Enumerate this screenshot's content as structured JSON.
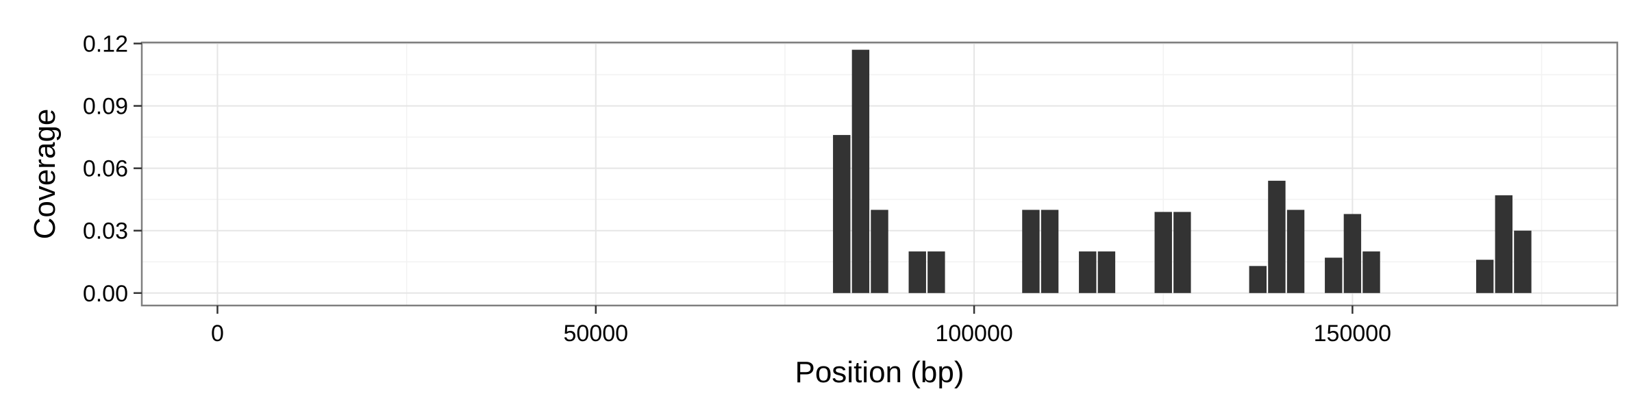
{
  "chart_data": {
    "type": "bar",
    "title": "",
    "xlabel": "Position (bp)",
    "ylabel": "Coverage",
    "xlim": [
      -10000,
      185000
    ],
    "ylim": [
      -0.006,
      0.1205
    ],
    "x_ticks": [
      0,
      50000,
      100000,
      150000
    ],
    "x_tick_labels": [
      "0",
      "50000",
      "100000",
      "150000"
    ],
    "y_ticks": [
      0.0,
      0.03,
      0.06,
      0.09,
      0.12
    ],
    "y_tick_labels": [
      "0.00",
      "0.03",
      "0.06",
      "0.09",
      "0.12"
    ],
    "grid": true,
    "bar_width": 2300,
    "bar_color": "#333333",
    "x": [
      82500,
      85000,
      87500,
      92500,
      95000,
      107500,
      110000,
      115000,
      117500,
      125000,
      127500,
      137500,
      140000,
      142500,
      147500,
      150000,
      152500,
      167500,
      170000,
      172500
    ],
    "values": [
      0.076,
      0.117,
      0.04,
      0.02,
      0.02,
      0.04,
      0.04,
      0.02,
      0.02,
      0.039,
      0.039,
      0.013,
      0.054,
      0.04,
      0.017,
      0.038,
      0.02,
      0.016,
      0.047,
      0.03
    ]
  },
  "colors": {
    "background": "#ffffff",
    "panel_border": "#7f7f7f",
    "grid_major": "#e5e5e5",
    "grid_minor": "#f2f2f2",
    "axis_tick": "#333333"
  }
}
